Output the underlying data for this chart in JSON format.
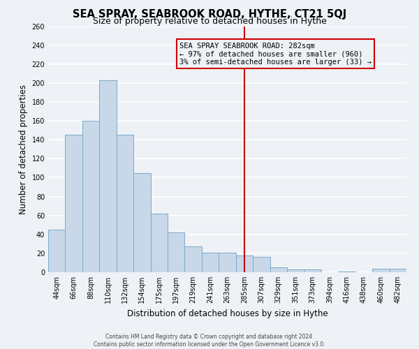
{
  "title": "SEA SPRAY, SEABROOK ROAD, HYTHE, CT21 5QJ",
  "subtitle": "Size of property relative to detached houses in Hythe",
  "xlabel": "Distribution of detached houses by size in Hythe",
  "ylabel": "Number of detached properties",
  "footer_line1": "Contains HM Land Registry data © Crown copyright and database right 2024.",
  "footer_line2": "Contains public sector information licensed under the Open Government Licence v3.0.",
  "bin_labels": [
    "44sqm",
    "66sqm",
    "88sqm",
    "110sqm",
    "132sqm",
    "154sqm",
    "175sqm",
    "197sqm",
    "219sqm",
    "241sqm",
    "263sqm",
    "285sqm",
    "307sqm",
    "329sqm",
    "351sqm",
    "373sqm",
    "394sqm",
    "416sqm",
    "438sqm",
    "460sqm",
    "482sqm"
  ],
  "bin_counts": [
    45,
    145,
    160,
    203,
    145,
    105,
    62,
    42,
    27,
    21,
    21,
    18,
    16,
    5,
    3,
    3,
    0,
    1,
    0,
    4,
    4
  ],
  "bar_color": "#c8d8e8",
  "bar_edge_color": "#7aaac8",
  "property_bin_index": 11,
  "vline_color": "#cc0000",
  "annotation_title": "SEA SPRAY SEABROOK ROAD: 282sqm",
  "annotation_line1": "← 97% of detached houses are smaller (960)",
  "annotation_line2": "3% of semi-detached houses are larger (33) →",
  "annotation_box_color": "#cc0000",
  "ylim": [
    0,
    260
  ],
  "yticks": [
    0,
    20,
    40,
    60,
    80,
    100,
    120,
    140,
    160,
    180,
    200,
    220,
    240,
    260
  ],
  "background_color": "#eef2f7",
  "grid_color": "#ffffff",
  "title_fontsize": 10.5,
  "subtitle_fontsize": 9,
  "axis_label_fontsize": 8.5,
  "tick_fontsize": 7,
  "annotation_fontsize": 7.5,
  "footer_fontsize": 5.5
}
